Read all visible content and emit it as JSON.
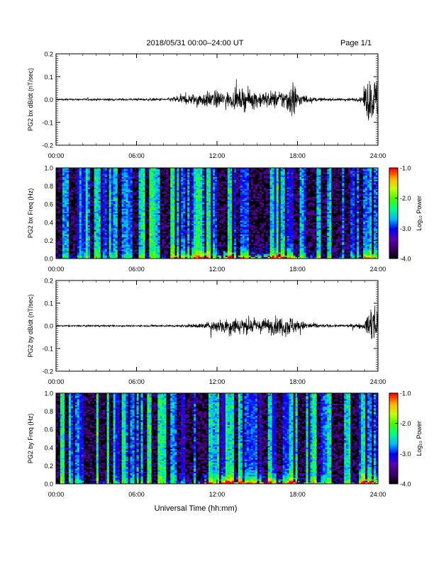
{
  "header": {
    "title": "2018/05/31   00:00–24:00 UT",
    "page": "Page 1/1"
  },
  "footer": {
    "xlabel": "Universal Time (hh:mm)"
  },
  "colorbar": {
    "ticks": [
      "-1.0",
      "-2.0",
      "-3.0",
      "-4.0"
    ],
    "label": "Log₁₀ Power",
    "colors": [
      "#000000",
      "#3a0066",
      "#5a00b0",
      "#0000ff",
      "#00b8ff",
      "#00ff80",
      "#40ff00",
      "#c8ff00",
      "#ffb000",
      "#ff0000"
    ]
  },
  "chart_data": [
    {
      "type": "line",
      "ylabel": "PG2 bx dB/dt (nT/sec)",
      "xlim": [
        0,
        24
      ],
      "ylim": [
        -0.2,
        0.2
      ],
      "xticks": [
        "00:00",
        "06:00",
        "12:00",
        "18:00",
        "24:00"
      ],
      "yticks": [
        "0.2",
        "0.1",
        "0.0",
        "-0.1",
        "-0.2"
      ],
      "envelope": {
        "hours": [
          0,
          3,
          6,
          8.5,
          9,
          10,
          11,
          12,
          13,
          14,
          15,
          16,
          17,
          17.8,
          18,
          19,
          20,
          21,
          22,
          22.8,
          23.2,
          24
        ],
        "amplitude": [
          0.008,
          0.01,
          0.01,
          0.014,
          0.04,
          0.05,
          0.07,
          0.08,
          0.07,
          0.1,
          0.08,
          0.08,
          0.09,
          0.2,
          0.07,
          0.02,
          0.015,
          0.012,
          0.015,
          0.02,
          0.2,
          0.2
        ]
      }
    },
    {
      "type": "heatmap",
      "ylabel": "PG2 bx Freq (Hz)",
      "xlim": [
        0,
        24
      ],
      "ylim": [
        0.0,
        1.0
      ],
      "zlim": [
        -4.0,
        -1.0
      ],
      "xticks": [
        "00:00",
        "06:00",
        "12:00",
        "18:00",
        "24:00"
      ],
      "yticks": [
        "1.0",
        "0.8",
        "0.6",
        "0.4",
        "0.2",
        "0.0"
      ]
    },
    {
      "type": "line",
      "ylabel": "PG2 by dB/dt (nT/sec)",
      "xlim": [
        0,
        24
      ],
      "ylim": [
        -0.2,
        0.2
      ],
      "xticks": [
        "00:00",
        "06:00",
        "12:00",
        "18:00",
        "24:00"
      ],
      "yticks": [
        "0.2",
        "0.1",
        "0.0",
        "-0.1",
        "-0.2"
      ],
      "envelope": {
        "hours": [
          0,
          3,
          6,
          9,
          11,
          12,
          13,
          14,
          15,
          16,
          17,
          17.5,
          18,
          19,
          20,
          21,
          22,
          23,
          23.5,
          24
        ],
        "amplitude": [
          0.006,
          0.008,
          0.008,
          0.01,
          0.025,
          0.06,
          0.09,
          0.08,
          0.06,
          0.08,
          0.09,
          0.1,
          0.05,
          0.03,
          0.015,
          0.012,
          0.015,
          0.03,
          0.2,
          0.2
        ]
      }
    },
    {
      "type": "heatmap",
      "ylabel": "PG2 by Freq (Hz)",
      "xlim": [
        0,
        24
      ],
      "ylim": [
        0.0,
        1.0
      ],
      "zlim": [
        -4.0,
        -1.0
      ],
      "xticks": [
        "00:00",
        "06:00",
        "12:00",
        "18:00",
        "24:00"
      ],
      "yticks": [
        "1.0",
        "0.8",
        "0.6",
        "0.4",
        "0.2",
        "0.0"
      ]
    }
  ]
}
